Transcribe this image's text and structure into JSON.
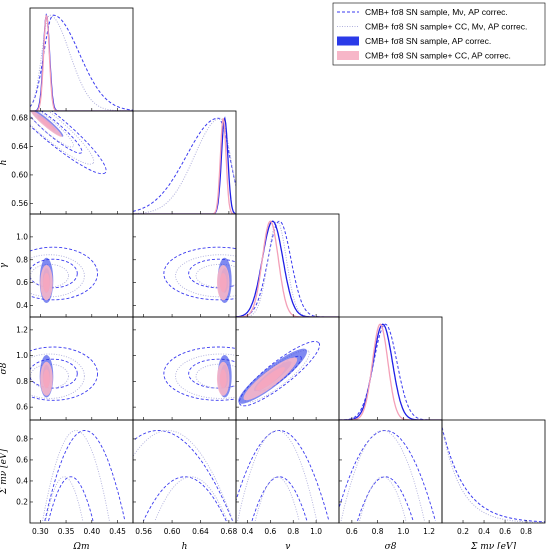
{
  "chart_data": {
    "type": "triangle-corner-plot",
    "title": "",
    "parameters": [
      {
        "key": "omega_m",
        "label": "Ωm",
        "range": [
          0.28,
          0.48
        ],
        "ticks": [
          0.3,
          0.35,
          0.4,
          0.45
        ],
        "tick_labels": [
          "0.30",
          "0.35",
          "0.40",
          "0.45"
        ]
      },
      {
        "key": "h",
        "label": "h",
        "range": [
          0.545,
          0.69
        ],
        "ticks": [
          0.56,
          0.6,
          0.64,
          0.68
        ],
        "tick_labels": [
          "0.56",
          "0.60",
          "0.64",
          "0.68"
        ]
      },
      {
        "key": "gamma",
        "label": "γ",
        "range": [
          0.3,
          1.2
        ],
        "ticks": [
          0.4,
          0.6,
          0.8,
          1.0
        ],
        "tick_labels": [
          "0.4",
          "0.6",
          "0.8",
          "1.0"
        ]
      },
      {
        "key": "sigma8",
        "label": "σ8",
        "range": [
          0.5,
          1.3
        ],
        "ticks": [
          0.6,
          0.8,
          1.0,
          1.2
        ],
        "tick_labels": [
          "0.6",
          "0.8",
          "1.0",
          "1.2"
        ]
      },
      {
        "key": "sum_mnu",
        "label": "Σ mν [eV]",
        "range": [
          0.0,
          0.98
        ],
        "ticks": [
          0.2,
          0.4,
          0.6,
          0.8
        ],
        "tick_labels": [
          "0.2",
          "0.4",
          "0.6",
          "0.8"
        ]
      }
    ],
    "series": [
      {
        "name": "CMB+ fσ8 SN sample, Mν, AP correc.",
        "style": "dashed",
        "color": "#3a3af0",
        "marginals": {
          "omega_m": {
            "peak": 0.325,
            "w": 0.018,
            "s": 1.8
          },
          "h": {
            "peak": 0.665,
            "w": 0.016,
            "s": -1.8
          },
          "gamma": {
            "peak": 0.68,
            "w": 0.1,
            "s": 0
          },
          "sigma8": {
            "peak": 0.86,
            "w": 0.09,
            "s": 0
          },
          "sum_mnu": {
            "decay": 0.22
          }
        }
      },
      {
        "name": "CMB+ fσ8 SN sample+ CC, Mν, AP correc.",
        "style": "dotted",
        "color": "#b0b0dc",
        "marginals": {
          "omega_m": {
            "peak": 0.318,
            "w": 0.015,
            "s": 1.6
          },
          "h": {
            "peak": 0.668,
            "w": 0.014,
            "s": -1.6
          },
          "gamma": {
            "peak": 0.66,
            "w": 0.08,
            "s": 0
          },
          "sigma8": {
            "peak": 0.84,
            "w": 0.075,
            "s": 0
          },
          "sum_mnu": {
            "decay": 0.18
          }
        }
      },
      {
        "name": "CMB+ fσ8 SN sample, AP correc.",
        "style": "filled",
        "color": "#1f1fe6",
        "fill": "#2a3ae8",
        "marginals": {
          "omega_m": {
            "peak": 0.312,
            "w": 0.006,
            "s": 0
          },
          "h": {
            "peak": 0.674,
            "w": 0.0045,
            "s": 0
          },
          "gamma": {
            "peak": 0.62,
            "w": 0.09,
            "s": 0
          },
          "sigma8": {
            "peak": 0.84,
            "w": 0.075,
            "s": 0
          }
        }
      },
      {
        "name": "CMB+ fσ8 SN sample+ CC, AP correc.",
        "style": "filled",
        "color": "#f4a0b8",
        "fill": "#f7b6c8",
        "marginals": {
          "omega_m": {
            "peak": 0.312,
            "w": 0.0055,
            "s": 0
          },
          "h": {
            "peak": 0.672,
            "w": 0.004,
            "s": 0
          },
          "gamma": {
            "peak": 0.6,
            "w": 0.07,
            "s": 0
          },
          "sigma8": {
            "peak": 0.82,
            "w": 0.06,
            "s": 0
          }
        }
      }
    ],
    "legend_position": "top-right",
    "grid": false
  }
}
